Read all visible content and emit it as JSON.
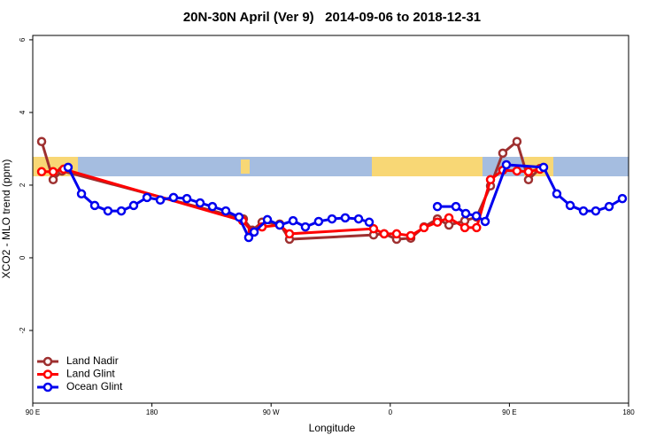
{
  "chart_data": {
    "type": "line",
    "title": "20N-30N April (Ver 9)   2014-09-06 to 2018-12-31",
    "x_label": "Longitude",
    "y_label": "XCO2 - MLO trend (ppm)",
    "xlim": [
      90,
      540
    ],
    "ylim": [
      -4,
      6.12
    ],
    "xticks": [
      {
        "value": 90,
        "label": "90 E"
      },
      180,
      {
        "value": 270,
        "label": "90 W"
      },
      {
        "value": 360,
        "label": "0"
      },
      {
        "value": 450,
        "label": "90 E"
      },
      {
        "value": 540,
        "label": "180"
      }
    ],
    "yticks": [
      -2,
      0,
      2,
      4,
      6
    ],
    "legend": "bottom-left",
    "series": [
      {
        "name": "Land Nadir",
        "color": "#9e3030",
        "x": [
          96.7,
          105.4,
          112.1,
          249.1,
          255.8,
          263.2,
          276.5,
          283.9,
          347.4,
          355.4,
          364.8,
          375.5,
          385.5,
          395.6,
          404.3,
          416.3,
          425.2,
          435.7,
          445,
          455.7,
          464.4,
          473.1
        ],
        "values": [
          3.2,
          2.15,
          2.39,
          1.07,
          0.76,
          0.98,
          0.93,
          0.51,
          0.63,
          0.66,
          0.51,
          0.54,
          0.85,
          1.07,
          0.9,
          1.02,
          1.12,
          1.98,
          2.88,
          3.2,
          2.15,
          2.46
        ]
      },
      {
        "name": "Land Glint",
        "color": "#ff0000",
        "x": [
          96.7,
          105.4,
          113.4,
          248.5,
          255.8,
          263.2,
          276.5,
          283.9,
          347.4,
          355.4,
          364.8,
          375.5,
          385.5,
          395.6,
          404.3,
          416.3,
          425.2,
          435.7,
          445,
          455.7,
          464.4,
          473.1
        ],
        "values": [
          2.37,
          2.37,
          2.44,
          1.02,
          0.71,
          0.85,
          0.9,
          0.66,
          0.8,
          0.66,
          0.66,
          0.61,
          0.83,
          0.98,
          1.1,
          0.83,
          0.83,
          2.15,
          2.41,
          2.39,
          2.37,
          2.44
        ]
      },
      {
        "name": "Ocean Glint",
        "color": "#0000ee",
        "x": [
          116.7,
          126.8,
          136.8,
          146.8,
          156.9,
          166.2,
          176.3,
          186.3,
          196.3,
          206.4,
          216.4,
          225.7,
          235.8,
          245.8,
          253.1,
          257.2,
          267.2,
          276.5,
          286.6,
          295.9,
          305.9,
          316,
          326,
          336.1,
          344.1,
          360,
          395.6,
          409.6,
          417,
          425,
          431.7,
          447.7,
          475.8,
          485.8,
          495.9,
          505.9,
          515.2,
          525.3,
          535.3
        ],
        "values": [
          2.49,
          1.76,
          1.44,
          1.29,
          1.29,
          1.44,
          1.66,
          1.59,
          1.66,
          1.63,
          1.51,
          1.41,
          1.29,
          1.12,
          0.56,
          0.71,
          1.05,
          0.9,
          1.02,
          0.85,
          1,
          1.07,
          1.1,
          1.07,
          0.98,
          null,
          1.41,
          1.41,
          1.22,
          1.15,
          1,
          2.56,
          2.49,
          1.76,
          1.44,
          1.29,
          1.29,
          1.41,
          1.63
        ]
      }
    ]
  }
}
